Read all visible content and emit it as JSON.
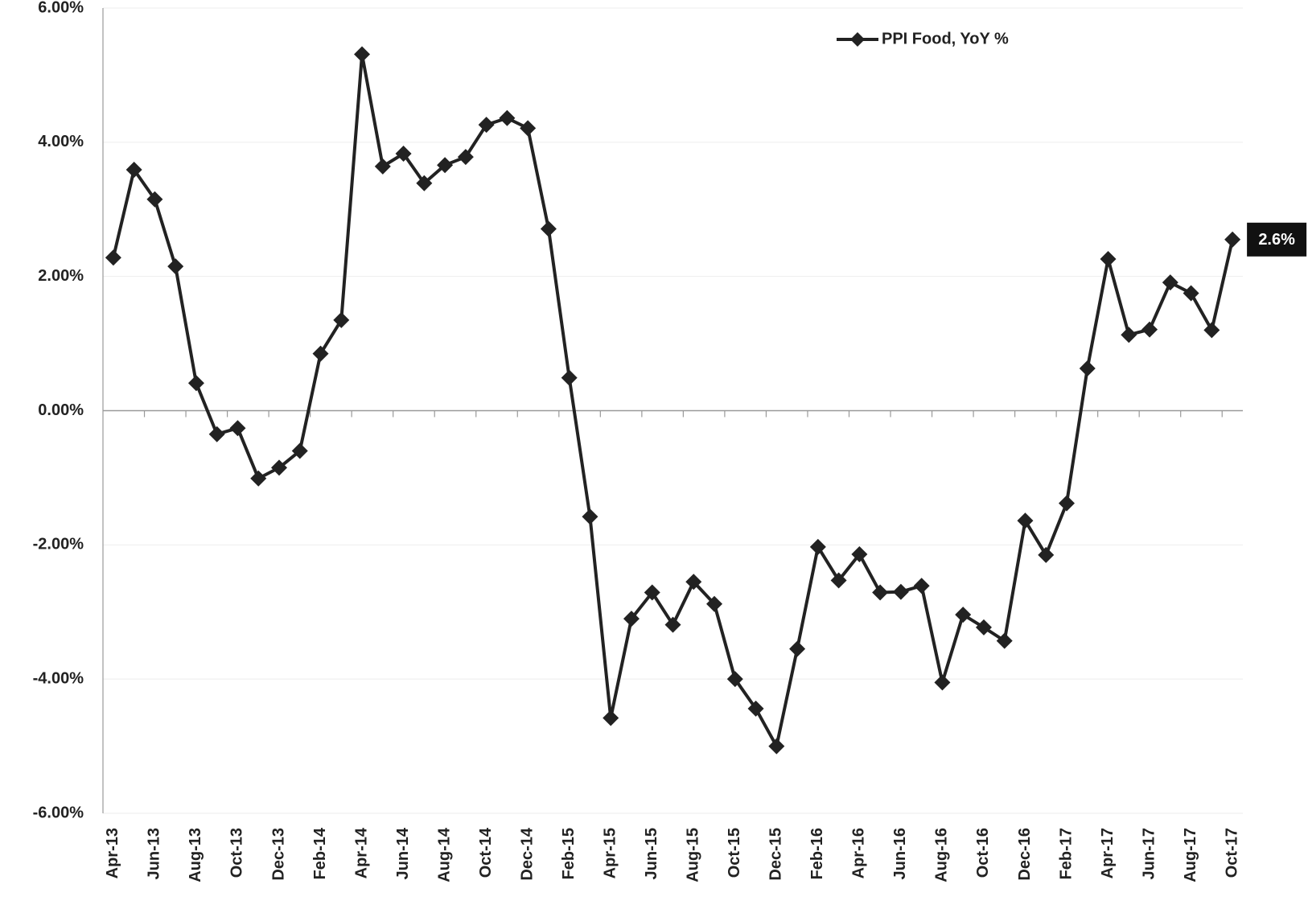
{
  "chart_data": {
    "type": "line",
    "categories": [
      "Apr-13",
      null,
      "Jun-13",
      null,
      "Aug-13",
      null,
      "Oct-13",
      null,
      "Dec-13",
      null,
      "Feb-14",
      null,
      "Apr-14",
      null,
      "Jun-14",
      null,
      "Aug-14",
      null,
      "Oct-14",
      null,
      "Dec-14",
      null,
      "Feb-15",
      null,
      "Apr-15",
      null,
      "Jun-15",
      null,
      "Aug-15",
      null,
      "Oct-15",
      null,
      "Dec-15",
      null,
      "Feb-16",
      null,
      "Apr-16",
      null,
      "Jun-16",
      null,
      "Aug-16",
      null,
      "Oct-16",
      null,
      "Dec-16",
      null,
      "Feb-17",
      null,
      "Apr-17",
      null,
      "Jun-17",
      null,
      "Aug-17",
      null,
      "Oct-17"
    ],
    "series": [
      {
        "name": "PPI Food, YoY %",
        "color": "#222222",
        "values": [
          2.28,
          3.59,
          3.15,
          2.15,
          0.41,
          -0.35,
          -0.26,
          -1.01,
          -0.85,
          -0.6,
          0.85,
          1.35,
          5.31,
          3.64,
          3.83,
          3.39,
          3.66,
          3.78,
          4.26,
          4.36,
          4.21,
          2.71,
          0.49,
          -1.58,
          -4.58,
          -3.1,
          -2.71,
          -3.19,
          -2.55,
          -2.88,
          -4.0,
          -4.44,
          -5.0,
          -3.55,
          -2.03,
          -2.53,
          -2.14,
          -2.71,
          -2.7,
          -2.61,
          -4.05,
          -3.04,
          -3.23,
          -3.43,
          -1.64,
          -2.15,
          -1.38,
          0.63,
          2.26,
          1.13,
          1.21,
          1.91,
          1.75,
          1.2,
          2.55
        ],
        "value_labels": [
          null,
          null,
          null,
          null,
          null,
          null,
          null,
          null,
          null,
          null,
          null,
          null,
          null,
          null,
          null,
          null,
          null,
          null,
          null,
          null,
          null,
          null,
          null,
          null,
          null,
          null,
          null,
          null,
          null,
          null,
          null,
          null,
          null,
          null,
          null,
          null,
          null,
          null,
          null,
          null,
          null,
          null,
          null,
          null,
          null,
          null,
          null,
          null,
          null,
          null,
          null,
          null,
          null,
          null,
          "2.6%"
        ]
      }
    ],
    "ylim": [
      -6,
      6
    ],
    "yticks": [
      {
        "value": -6,
        "label": "-6.00%"
      },
      {
        "value": -4,
        "label": "-4.00%"
      },
      {
        "value": -2,
        "label": "-2.00%"
      },
      {
        "value": 0,
        "label": "0.00%"
      },
      {
        "value": 2,
        "label": "2.00%"
      },
      {
        "value": 4,
        "label": "4.00%"
      },
      {
        "value": 6,
        "label": "6.00%"
      }
    ],
    "grid": true,
    "legend": "top-right"
  }
}
